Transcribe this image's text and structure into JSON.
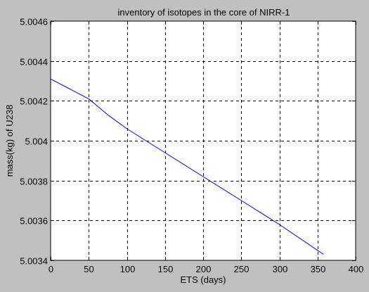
{
  "chart_data": {
    "type": "line",
    "title": "inventory of isotopes in the core of NIRR-1",
    "xlabel": "ETS (days)",
    "ylabel": "mass(kg) of U238",
    "xlim": [
      0,
      400
    ],
    "ylim": [
      5.0034,
      5.0046
    ],
    "xticks": [
      0,
      50,
      100,
      150,
      200,
      250,
      300,
      350,
      400
    ],
    "xtick_labels": [
      "0",
      "50",
      "100",
      "150",
      "200",
      "250",
      "300",
      "350",
      "400"
    ],
    "yticks": [
      5.0034,
      5.0036,
      5.0038,
      5.004,
      5.0042,
      5.0044,
      5.0046
    ],
    "ytick_labels": [
      "5.0034",
      "5.0036",
      "5.0038",
      "5.004",
      "5.0042",
      "5.0044",
      "5.0046"
    ],
    "grid": true,
    "grid_style": "dashed",
    "series": [
      {
        "color": "#0000ff",
        "x": [
          0,
          5,
          10,
          20,
          30,
          40,
          50,
          75,
          100,
          150,
          200,
          250,
          300,
          350,
          358
        ],
        "y": [
          5.00431,
          5.0043,
          5.00429,
          5.00427,
          5.00425,
          5.00423,
          5.00421,
          5.00413,
          5.00406,
          5.00394,
          5.00382,
          5.0037,
          5.00358,
          5.00345,
          5.00343
        ]
      }
    ]
  },
  "colors": {
    "background": "#c0c0c0",
    "plot_area": "#ffffff",
    "axes": "#000000",
    "grid": "#000000",
    "line": "#0000ff"
  }
}
